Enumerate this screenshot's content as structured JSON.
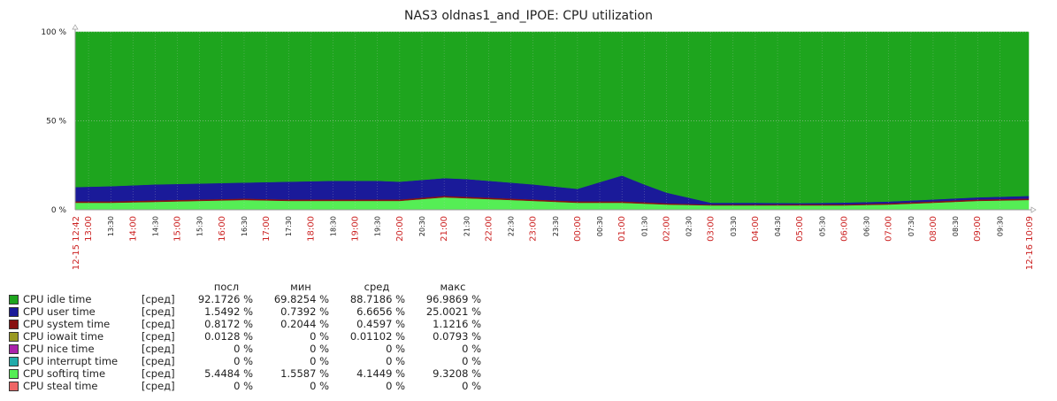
{
  "chart_data": {
    "type": "area",
    "title": "NAS3 oldnas1_and_IPOE: CPU utilization",
    "stacked": true,
    "ylim": [
      0,
      100
    ],
    "y_ticks": [
      "0 %",
      "50 %",
      "100 %"
    ],
    "y_tick_values": [
      0,
      50,
      100
    ],
    "grid": true,
    "x_start_label": "12-15 12:42",
    "x_end_label": "12-16 10:09",
    "x_labels": [
      "13:00",
      "13:30",
      "14:00",
      "14:30",
      "15:00",
      "15:30",
      "16:00",
      "16:30",
      "17:00",
      "17:30",
      "18:00",
      "18:30",
      "19:00",
      "19:30",
      "20:00",
      "20:30",
      "21:00",
      "21:30",
      "22:00",
      "22:30",
      "23:00",
      "23:30",
      "00:00",
      "00:30",
      "01:00",
      "01:30",
      "02:00",
      "02:30",
      "03:00",
      "03:30",
      "04:00",
      "04:30",
      "05:00",
      "05:30",
      "06:00",
      "06:30",
      "07:00",
      "07:30",
      "08:00",
      "08:30",
      "09:00",
      "09:30"
    ],
    "x": [
      "12-15 12:42",
      "12-15 13:30",
      "12-15 14:30",
      "12-15 15:30",
      "12-15 16:30",
      "12-15 17:30",
      "12-15 18:30",
      "12-15 19:30",
      "12-15 20:00",
      "12-15 21:00",
      "12-15 21:30",
      "12-15 22:00",
      "12-15 23:00",
      "12-16 00:00",
      "12-16 01:00",
      "12-16 01:30",
      "12-16 02:00",
      "12-16 03:00",
      "12-16 04:00",
      "12-16 05:00",
      "12-16 06:00",
      "12-16 07:00",
      "12-16 08:00",
      "12-16 09:00",
      "12-16 10:09"
    ],
    "series": [
      {
        "name": "CPU softirq time",
        "color": "#55ee55",
        "values": [
          4,
          4,
          4.5,
          5,
          5.5,
          5,
          5,
          5,
          5,
          7,
          6.5,
          6,
          5,
          4,
          4,
          3.5,
          3,
          2.5,
          2.5,
          2.5,
          2.5,
          3,
          4,
          5,
          5.5
        ]
      },
      {
        "name": "CPU system time",
        "color": "#881111",
        "values": [
          0.8,
          0.8,
          0.8,
          0.8,
          0.8,
          0.8,
          0.8,
          0.8,
          0.8,
          0.8,
          0.8,
          0.8,
          0.8,
          0.8,
          0.8,
          0.8,
          0.7,
          0.5,
          0.5,
          0.6,
          0.6,
          0.7,
          0.8,
          0.8,
          0.8
        ]
      },
      {
        "name": "CPU user time",
        "color": "#1a1a99",
        "values": [
          8,
          8.5,
          9,
          9,
          9,
          10,
          10.5,
          10.5,
          10,
          10,
          10,
          9.5,
          8.5,
          7,
          14.5,
          10,
          6,
          1,
          1,
          0.7,
          1,
          1,
          1,
          1.2,
          1.5
        ]
      },
      {
        "name": "CPU idle time",
        "color": "#1ea51e",
        "values": [
          87.2,
          86.7,
          85.7,
          85.2,
          84.7,
          84.2,
          83.7,
          83.7,
          84.2,
          82.2,
          82.7,
          83.7,
          85.7,
          88.2,
          80.7,
          85.7,
          90.3,
          96,
          96,
          96.2,
          95.9,
          95.3,
          94.2,
          93,
          92.2
        ]
      }
    ]
  },
  "legend": {
    "headers": {
      "last": "посл",
      "min": "мин",
      "avg": "сред",
      "max": "макс"
    },
    "rows": [
      {
        "name": "CPU idle time",
        "color": "#1ea51e",
        "agg": "[сред]",
        "last": "92.1726 %",
        "min": "69.8254 %",
        "avg": "88.7186 %",
        "max": "96.9869 %"
      },
      {
        "name": "CPU user time",
        "color": "#1a1a99",
        "agg": "[сред]",
        "last": "1.5492 %",
        "min": "0.7392 %",
        "avg": "6.6656 %",
        "max": "25.0021 %"
      },
      {
        "name": "CPU system time",
        "color": "#881111",
        "agg": "[сред]",
        "last": "0.8172 %",
        "min": "0.2044 %",
        "avg": "0.4597 %",
        "max": "1.1216 %"
      },
      {
        "name": "CPU iowait time",
        "color": "#999922",
        "agg": "[сред]",
        "last": "0.0128 %",
        "min": "0 %",
        "avg": "0.01102 %",
        "max": "0.0793 %"
      },
      {
        "name": "CPU nice time",
        "color": "#aa22aa",
        "agg": "[сред]",
        "last": "0 %",
        "min": "0 %",
        "avg": "0 %",
        "max": "0 %"
      },
      {
        "name": "CPU interrupt time",
        "color": "#22aaaa",
        "agg": "[сред]",
        "last": "0 %",
        "min": "0 %",
        "avg": "0 %",
        "max": "0 %"
      },
      {
        "name": "CPU softirq time",
        "color": "#55ee55",
        "agg": "[сред]",
        "last": "5.4484 %",
        "min": "1.5587 %",
        "avg": "4.1449 %",
        "max": "9.3208 %"
      },
      {
        "name": "CPU steal time",
        "color": "#ee6666",
        "agg": "[сред]",
        "last": "0 %",
        "min": "0 %",
        "avg": "0 %",
        "max": "0 %"
      }
    ]
  }
}
